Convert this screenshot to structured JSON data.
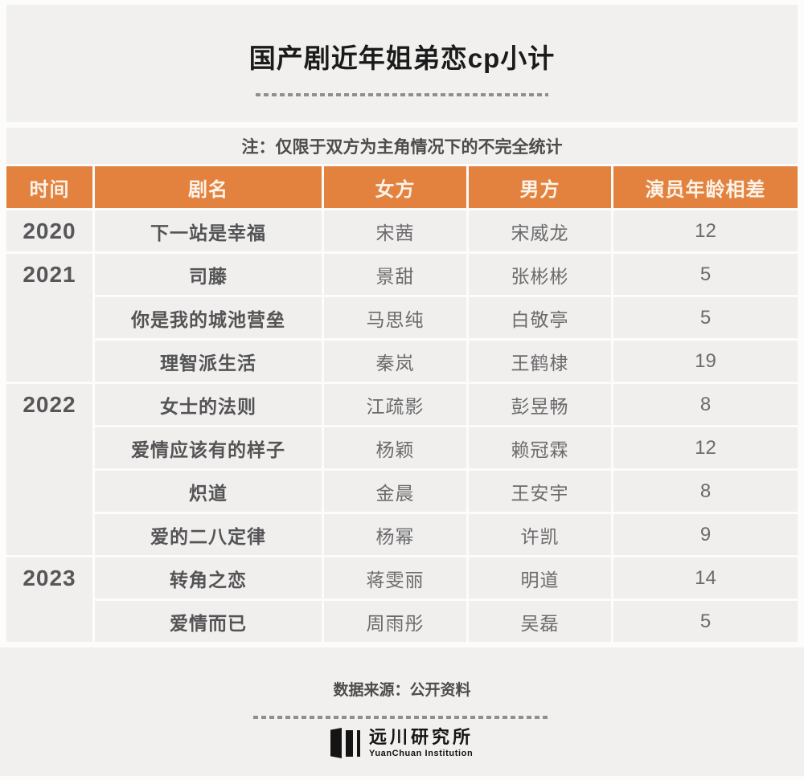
{
  "title": "国产剧近年姐弟恋cp小计",
  "note": "注：仅限于双方为主角情况下的不完全统计",
  "table": {
    "headers": [
      "时间",
      "剧名",
      "女方",
      "男方",
      "演员年龄相差"
    ],
    "year_groups": [
      {
        "year": "2020",
        "span": 1
      },
      {
        "year": "2021",
        "span": 3
      },
      {
        "year": "2022",
        "span": 4
      },
      {
        "year": "2023",
        "span": 2
      }
    ],
    "rows": [
      {
        "year": "2020",
        "drama": "下一站是幸福",
        "actress": "宋茜",
        "actor": "宋威龙",
        "age_gap": "12"
      },
      {
        "year": "2021",
        "drama": "司藤",
        "actress": "景甜",
        "actor": "张彬彬",
        "age_gap": "5"
      },
      {
        "year": "2021",
        "drama": "你是我的城池营垒",
        "actress": "马思纯",
        "actor": "白敬亭",
        "age_gap": "5"
      },
      {
        "year": "2021",
        "drama": "理智派生活",
        "actress": "秦岚",
        "actor": "王鹤棣",
        "age_gap": "19"
      },
      {
        "year": "2022",
        "drama": "女士的法则",
        "actress": "江疏影",
        "actor": "彭昱畅",
        "age_gap": "8"
      },
      {
        "year": "2022",
        "drama": "爱情应该有的样子",
        "actress": "杨颖",
        "actor": "赖冠霖",
        "age_gap": "12"
      },
      {
        "year": "2022",
        "drama": "炽道",
        "actress": "金晨",
        "actor": "王安宇",
        "age_gap": "8"
      },
      {
        "year": "2022",
        "drama": "爱的二八定律",
        "actress": "杨幂",
        "actor": "许凯",
        "age_gap": "9"
      },
      {
        "year": "2023",
        "drama": "转角之恋",
        "actress": "蒋雯丽",
        "actor": "明道",
        "age_gap": "14"
      },
      {
        "year": "2023",
        "drama": "爱情而已",
        "actress": "周雨彤",
        "actor": "吴磊",
        "age_gap": "5"
      }
    ]
  },
  "footer": {
    "source": "数据来源：公开资料",
    "logo": {
      "name_cn": "远川研究所",
      "name_en": "YuanChuan Institution"
    }
  },
  "colors": {
    "accent_orange": "#e2823e",
    "header_text": "#fbf2e8",
    "block_gray": "#f1f0ee",
    "cell_gray": "#f0efed",
    "title_text": "#1b1b1b",
    "body_text": "#6b6b6d"
  },
  "chart_data": {
    "type": "table",
    "title": "国产剧近年姐弟恋cp小计",
    "note": "注：仅限于双方为主角情况下的不完全统计",
    "columns": [
      "时间",
      "剧名",
      "女方",
      "男方",
      "演员年龄相差"
    ],
    "rows": [
      [
        "2020",
        "下一站是幸福",
        "宋茜",
        "宋威龙",
        12
      ],
      [
        "2021",
        "司藤",
        "景甜",
        "张彬彬",
        5
      ],
      [
        "2021",
        "你是我的城池营垒",
        "马思纯",
        "白敬亭",
        5
      ],
      [
        "2021",
        "理智派生活",
        "秦岚",
        "王鹤棣",
        19
      ],
      [
        "2022",
        "女士的法则",
        "江疏影",
        "彭昱畅",
        8
      ],
      [
        "2022",
        "爱情应该有的样子",
        "杨颖",
        "赖冠霖",
        12
      ],
      [
        "2022",
        "炽道",
        "金晨",
        "王安宇",
        8
      ],
      [
        "2022",
        "爱的二八定律",
        "杨幂",
        "许凯",
        9
      ],
      [
        "2023",
        "转角之恋",
        "蒋雯丽",
        "明道",
        14
      ],
      [
        "2023",
        "爱情而已",
        "周雨彤",
        "吴磊",
        5
      ]
    ],
    "source": "数据来源：公开资料"
  }
}
